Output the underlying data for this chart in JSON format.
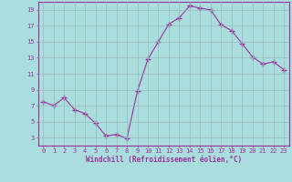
{
  "x": [
    0,
    1,
    2,
    3,
    4,
    5,
    6,
    7,
    8,
    9,
    10,
    11,
    12,
    13,
    14,
    15,
    16,
    17,
    18,
    19,
    20,
    21,
    22,
    23
  ],
  "y": [
    7.5,
    7.0,
    8.0,
    6.5,
    6.0,
    4.8,
    3.2,
    3.4,
    2.9,
    8.8,
    12.8,
    15.0,
    17.2,
    18.0,
    19.5,
    19.2,
    19.0,
    17.1,
    16.4,
    14.8,
    13.1,
    12.2,
    12.5,
    11.5
  ],
  "line_color": "#993399",
  "bg_color": "#aadddd",
  "grid_color": "#99bbbb",
  "xlabel": "Windchill (Refroidissement éolien,°C)",
  "tick_color": "#993399",
  "ylim": [
    2,
    20
  ],
  "xlim": [
    -0.5,
    23.5
  ],
  "yticks": [
    3,
    5,
    7,
    9,
    11,
    13,
    15,
    17,
    19
  ],
  "xticks": [
    0,
    1,
    2,
    3,
    4,
    5,
    6,
    7,
    8,
    9,
    10,
    11,
    12,
    13,
    14,
    15,
    16,
    17,
    18,
    19,
    20,
    21,
    22,
    23
  ],
  "marker": "+",
  "markersize": 4.0,
  "linewidth": 0.8,
  "title_fontsize": 5.0,
  "xlabel_fontsize": 5.5,
  "tick_fontsize": 5.0
}
